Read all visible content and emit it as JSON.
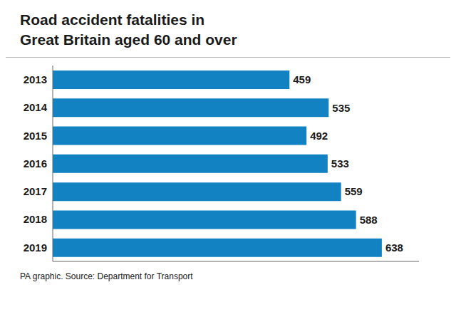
{
  "chart_data": {
    "type": "bar",
    "title": "Road accident fatalities in\nGreat Britain aged 60 and over",
    "annotations": [
      "PA graphic. Source: Department for Transport"
    ],
    "categories": [
      "2013",
      "2014",
      "2015",
      "2016",
      "2017",
      "2018",
      "2019"
    ],
    "values": [
      459,
      535,
      492,
      533,
      559,
      588,
      638
    ],
    "color": "#1282c3",
    "orientation": "horizontal",
    "xlim": [
      0,
      710
    ],
    "grid": false,
    "data_labels": true,
    "tick_labels": "y"
  }
}
